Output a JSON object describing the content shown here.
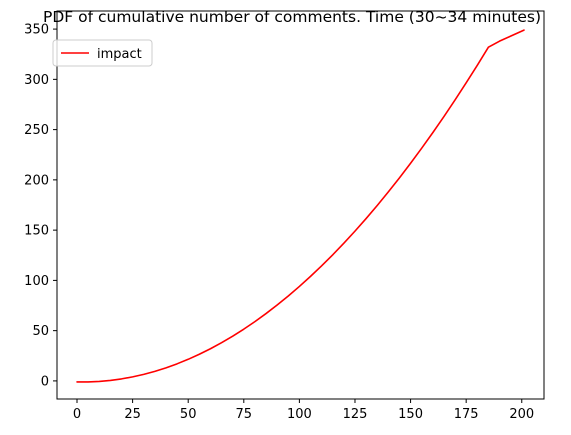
{
  "chart_data": {
    "type": "line",
    "title": "PDF of cumulative number of comments. Time (30~34 minutes)",
    "xlabel": "",
    "ylabel": "",
    "xlim": [
      -9,
      210
    ],
    "ylim": [
      -18,
      368
    ],
    "x_ticks": [
      0,
      25,
      50,
      75,
      100,
      125,
      150,
      175,
      200
    ],
    "y_ticks": [
      0,
      50,
      100,
      150,
      200,
      250,
      300,
      350
    ],
    "grid": false,
    "legend": {
      "position": "top-left",
      "entries": [
        "impact"
      ]
    },
    "series": [
      {
        "name": "impact",
        "color": "#ff0000",
        "x": [
          0,
          5,
          10,
          15,
          20,
          25,
          30,
          35,
          40,
          45,
          50,
          55,
          60,
          65,
          70,
          75,
          80,
          85,
          90,
          95,
          100,
          105,
          110,
          115,
          120,
          125,
          130,
          135,
          140,
          145,
          150,
          155,
          160,
          165,
          170,
          175,
          180,
          185,
          190,
          195,
          201
        ],
        "y": [
          -1,
          -1,
          -0.5,
          0.5,
          2,
          4,
          6.5,
          9.5,
          13,
          17,
          21.5,
          26.5,
          32,
          38,
          44.5,
          51.5,
          59,
          67,
          75.5,
          84.5,
          94,
          104,
          114.5,
          125.5,
          137,
          149,
          161.5,
          174.5,
          188,
          202,
          216.5,
          231.5,
          247,
          263,
          279.5,
          296.5,
          314,
          332,
          338,
          343,
          349
        ]
      }
    ]
  }
}
